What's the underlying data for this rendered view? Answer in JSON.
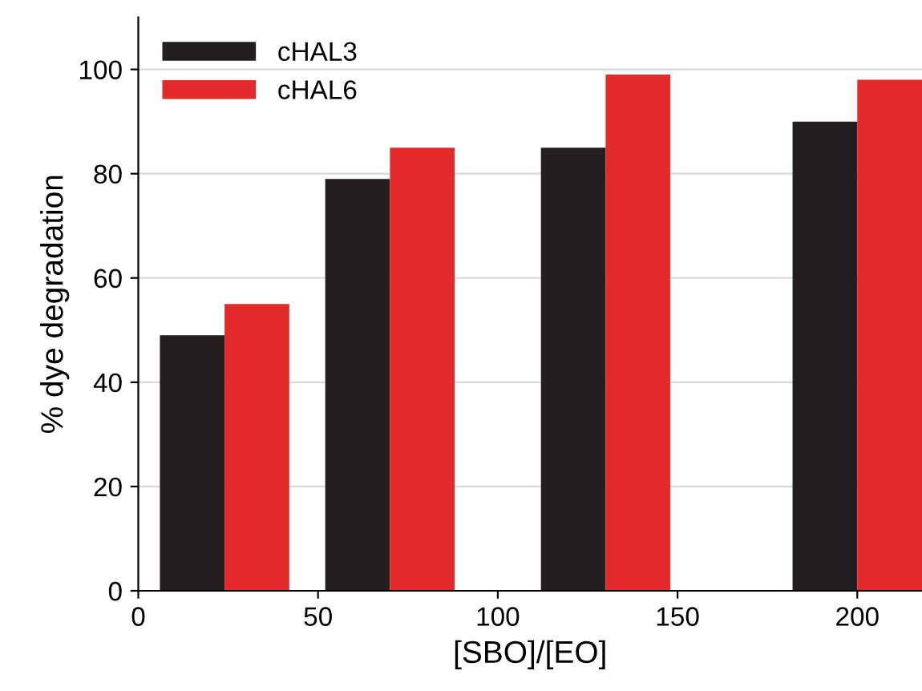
{
  "chart_data": {
    "type": "bar",
    "xlabel": "[SBO]/[EO]",
    "ylabel": "% dye degradation",
    "x": [
      24,
      70,
      130,
      200
    ],
    "series": [
      {
        "name": "cHAL3",
        "color": "#231f20",
        "values": [
          49,
          79,
          85,
          90
        ]
      },
      {
        "name": "cHAL6",
        "color": "#e32b2b",
        "values": [
          55,
          85,
          99,
          98
        ]
      }
    ],
    "xlim": [
      0,
      218
    ],
    "xticks": [
      0,
      50,
      100,
      150,
      200
    ],
    "ylim": [
      0,
      110
    ],
    "yticks": [
      0,
      20,
      40,
      60,
      80,
      100
    ],
    "grid": "y",
    "legend": "top left"
  }
}
